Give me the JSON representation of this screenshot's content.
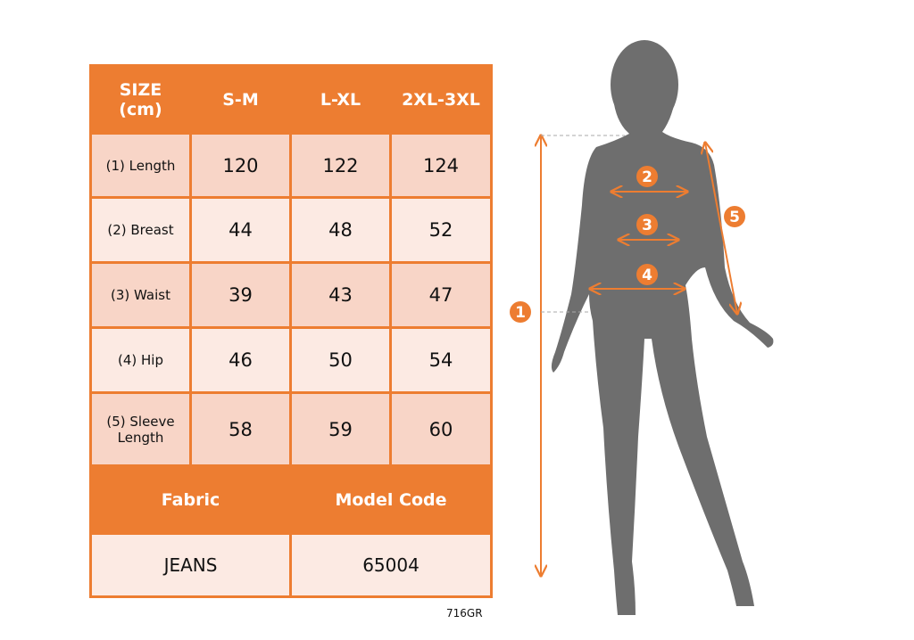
{
  "size_table": {
    "header": {
      "label_line1": "SIZE",
      "label_line2": "(cm)",
      "sizes": [
        "S-M",
        "L-XL",
        "2XL-3XL"
      ]
    },
    "rows": [
      {
        "label": "(1) Length",
        "values": [
          "120",
          "122",
          "124"
        ]
      },
      {
        "label": "(2) Breast",
        "values": [
          "44",
          "48",
          "52"
        ]
      },
      {
        "label": "(3) Waist",
        "values": [
          "39",
          "43",
          "47"
        ]
      },
      {
        "label": "(4) Hip",
        "values": [
          "46",
          "50",
          "54"
        ]
      },
      {
        "label_line1": "(5) Sleeve",
        "label_line2": "Length",
        "values": [
          "58",
          "59",
          "60"
        ]
      }
    ],
    "fabric_label": "Fabric",
    "model_code_label": "Model Code",
    "fabric_value": "JEANS",
    "model_code_value": "65004"
  },
  "product_code": "716GR",
  "figure": {
    "markers": [
      "1",
      "2",
      "3",
      "4",
      "5"
    ]
  },
  "colors": {
    "accent": "#ED7D31",
    "row_dark": "#F8D5C7",
    "row_light": "#FCEAE3",
    "silhouette": "#6E6E6E"
  }
}
